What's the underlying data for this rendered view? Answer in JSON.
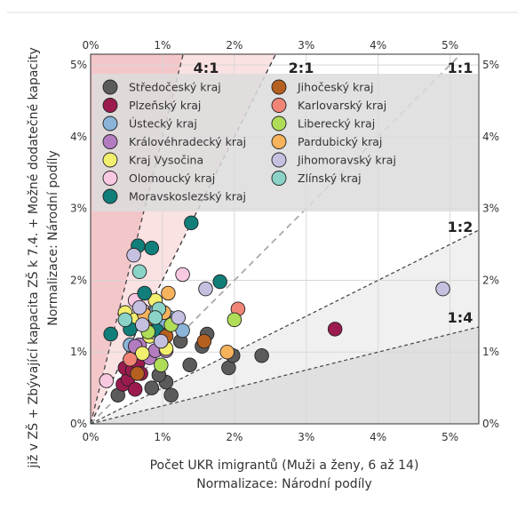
{
  "chart_data": {
    "type": "scatter",
    "title": "",
    "xlabel": "Počet UKR imigrantů (Muži a ženy, 6 až 14)",
    "xlabel_sub": "Normalizace: Národní podíly",
    "ylabel": "již v ZŠ + Zbývající kapacita ZŠ k 7.4. + Možné dodatečné kapacity",
    "ylabel_sub": "Normalizace: Národní podíly",
    "xlim": [
      0,
      5.4
    ],
    "ylim": [
      0,
      5.15
    ],
    "x_ticks": [
      0,
      1,
      2,
      3,
      4,
      5
    ],
    "y_ticks": [
      0,
      1,
      2,
      3,
      4,
      5
    ],
    "tick_labels": [
      "0%",
      "1%",
      "2%",
      "3%",
      "4%",
      "5%"
    ],
    "grid": true,
    "legend_position": "top",
    "ratio_lines": [
      {
        "label": "4:1",
        "slope": 4
      },
      {
        "label": "2:1",
        "slope": 2
      },
      {
        "label": "1:1",
        "slope": 1
      },
      {
        "label": "1:2",
        "slope": 0.5
      },
      {
        "label": "1:4",
        "slope": 0.25
      }
    ],
    "series": [
      {
        "name": "Středočeský kraj",
        "color": "#5b5b5b",
        "points": [
          [
            0.38,
            0.4
          ],
          [
            0.85,
            0.5
          ],
          [
            1.05,
            0.58
          ],
          [
            1.12,
            0.4
          ],
          [
            1.38,
            0.82
          ],
          [
            1.55,
            1.08
          ],
          [
            1.62,
            1.25
          ],
          [
            1.92,
            0.78
          ],
          [
            1.98,
            0.95
          ],
          [
            2.38,
            0.95
          ],
          [
            0.95,
            0.68
          ],
          [
            1.25,
            1.15
          ],
          [
            0.72,
            0.95
          ]
        ]
      },
      {
        "name": "Plzeňský kraj",
        "color": "#9b1b4f",
        "points": [
          [
            0.45,
            0.55
          ],
          [
            0.52,
            0.62
          ],
          [
            0.62,
            0.48
          ],
          [
            0.48,
            0.78
          ],
          [
            0.58,
            0.75
          ],
          [
            0.66,
            0.85
          ],
          [
            0.7,
            0.7
          ],
          [
            3.4,
            1.32
          ]
        ]
      },
      {
        "name": "Ústecký kraj",
        "color": "#8ab4d8",
        "points": [
          [
            0.92,
            1.58
          ],
          [
            1.1,
            1.48
          ],
          [
            1.05,
            1.42
          ],
          [
            1.28,
            1.3
          ],
          [
            0.55,
            1.1
          ]
        ]
      },
      {
        "name": "Královéhradecký kraj",
        "color": "#b47cc0",
        "points": [
          [
            0.68,
            1.1
          ],
          [
            0.82,
            0.92
          ],
          [
            0.9,
            1.02
          ],
          [
            1.05,
            1.02
          ],
          [
            0.62,
            1.08
          ]
        ]
      },
      {
        "name": "Kraj Vysočina",
        "color": "#f3ef6e",
        "points": [
          [
            0.48,
            1.55
          ],
          [
            0.62,
            1.45
          ],
          [
            0.9,
            1.72
          ],
          [
            0.72,
            0.98
          ],
          [
            1.05,
            1.05
          ],
          [
            0.82,
            1.22
          ]
        ]
      },
      {
        "name": "Olomoucký kraj",
        "color": "#f9c9e2",
        "points": [
          [
            0.22,
            0.6
          ],
          [
            0.62,
            1.72
          ],
          [
            1.28,
            2.08
          ],
          [
            0.72,
            1.58
          ],
          [
            0.88,
            1.28
          ]
        ]
      },
      {
        "name": "Moravskoslezský kraj",
        "color": "#117e7a",
        "points": [
          [
            0.66,
            2.48
          ],
          [
            0.85,
            2.45
          ],
          [
            1.4,
            2.8
          ],
          [
            0.75,
            1.82
          ],
          [
            1.8,
            1.98
          ],
          [
            0.92,
            1.3
          ],
          [
            0.28,
            1.25
          ],
          [
            0.55,
            1.32
          ]
        ]
      },
      {
        "name": "Jihočeský kraj",
        "color": "#b5601f",
        "points": [
          [
            0.65,
            0.7
          ],
          [
            1.58,
            1.15
          ],
          [
            0.78,
            1.45
          ],
          [
            1.05,
            1.22
          ]
        ]
      },
      {
        "name": "Karlovarský kraj",
        "color": "#f08576",
        "points": [
          [
            2.05,
            1.6
          ],
          [
            0.55,
            0.9
          ]
        ]
      },
      {
        "name": "Liberecký kraj",
        "color": "#b0dd58",
        "points": [
          [
            2.0,
            1.45
          ],
          [
            0.98,
            0.82
          ],
          [
            0.8,
            1.28
          ],
          [
            1.12,
            1.38
          ]
        ]
      },
      {
        "name": "Pardubický kraj",
        "color": "#f7b25c",
        "points": [
          [
            1.08,
            1.82
          ],
          [
            1.9,
            1.0
          ],
          [
            1.02,
            1.55
          ],
          [
            0.75,
            1.52
          ]
        ]
      },
      {
        "name": "Jihomoravský kraj",
        "color": "#c5c0e0",
        "points": [
          [
            0.6,
            2.35
          ],
          [
            1.6,
            1.88
          ],
          [
            4.9,
            1.88
          ],
          [
            0.68,
            1.62
          ],
          [
            0.98,
            1.15
          ],
          [
            1.22,
            1.48
          ],
          [
            0.72,
            1.38
          ]
        ]
      },
      {
        "name": "Zlínský kraj",
        "color": "#8ad3c6",
        "points": [
          [
            0.68,
            2.12
          ],
          [
            0.95,
            1.6
          ],
          [
            0.48,
            1.45
          ],
          [
            0.9,
            1.48
          ]
        ]
      }
    ]
  }
}
